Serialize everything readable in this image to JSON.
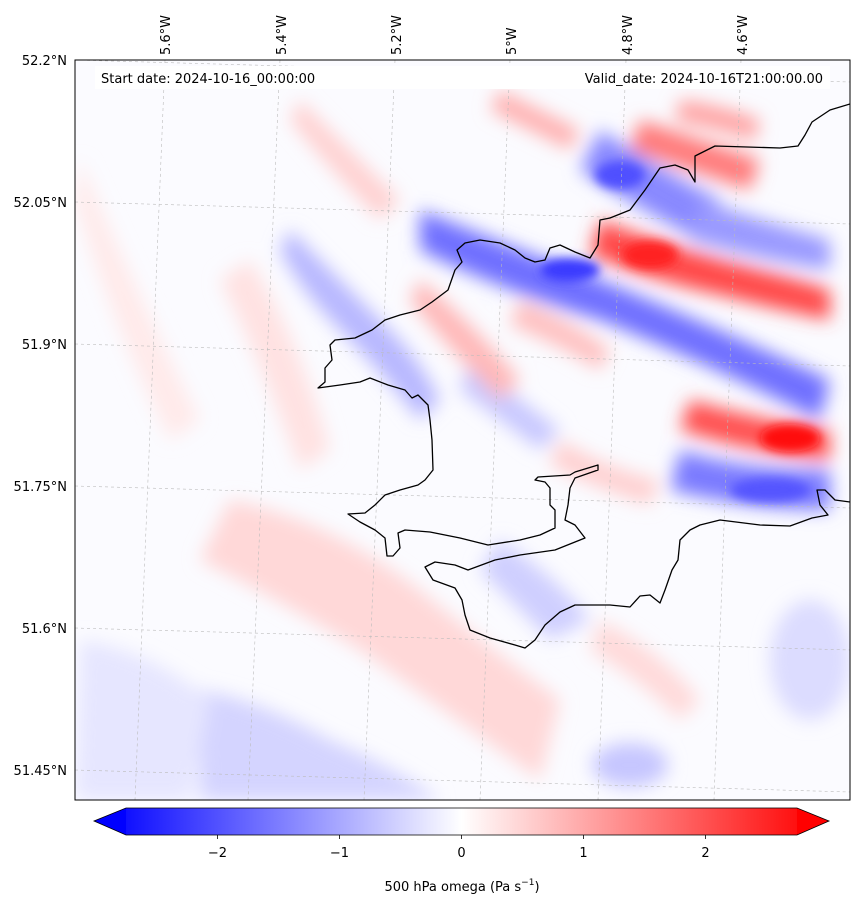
{
  "header": {
    "start_date": "Start date: 2024-10-16_00:00:00",
    "valid_date": "Valid_date: 2024-10-16T21:00:00.00"
  },
  "axes": {
    "longitude_labels": [
      "5.6°W",
      "5.4°W",
      "5.2°W",
      "5°W",
      "4.8°W",
      "4.6°W"
    ],
    "latitude_labels": [
      "52.2°N",
      "52.05°N",
      "51.9°N",
      "51.75°N",
      "51.6°N",
      "51.45°N"
    ]
  },
  "colorbar": {
    "label_prefix": "500 hPa omega (Pa s",
    "label_exponent": "−1",
    "label_suffix": ")",
    "ticks": [
      "−2",
      "−1",
      "0",
      "1",
      "2"
    ],
    "range": [
      -2.75,
      2.75
    ],
    "colormap": "bwr",
    "colors": {
      "low": "#0000ff",
      "mid": "#ffffff",
      "high": "#ff0000"
    }
  },
  "map": {
    "field": "500 hPa omega",
    "coastline_color": "#000000",
    "gridlines": true
  }
}
